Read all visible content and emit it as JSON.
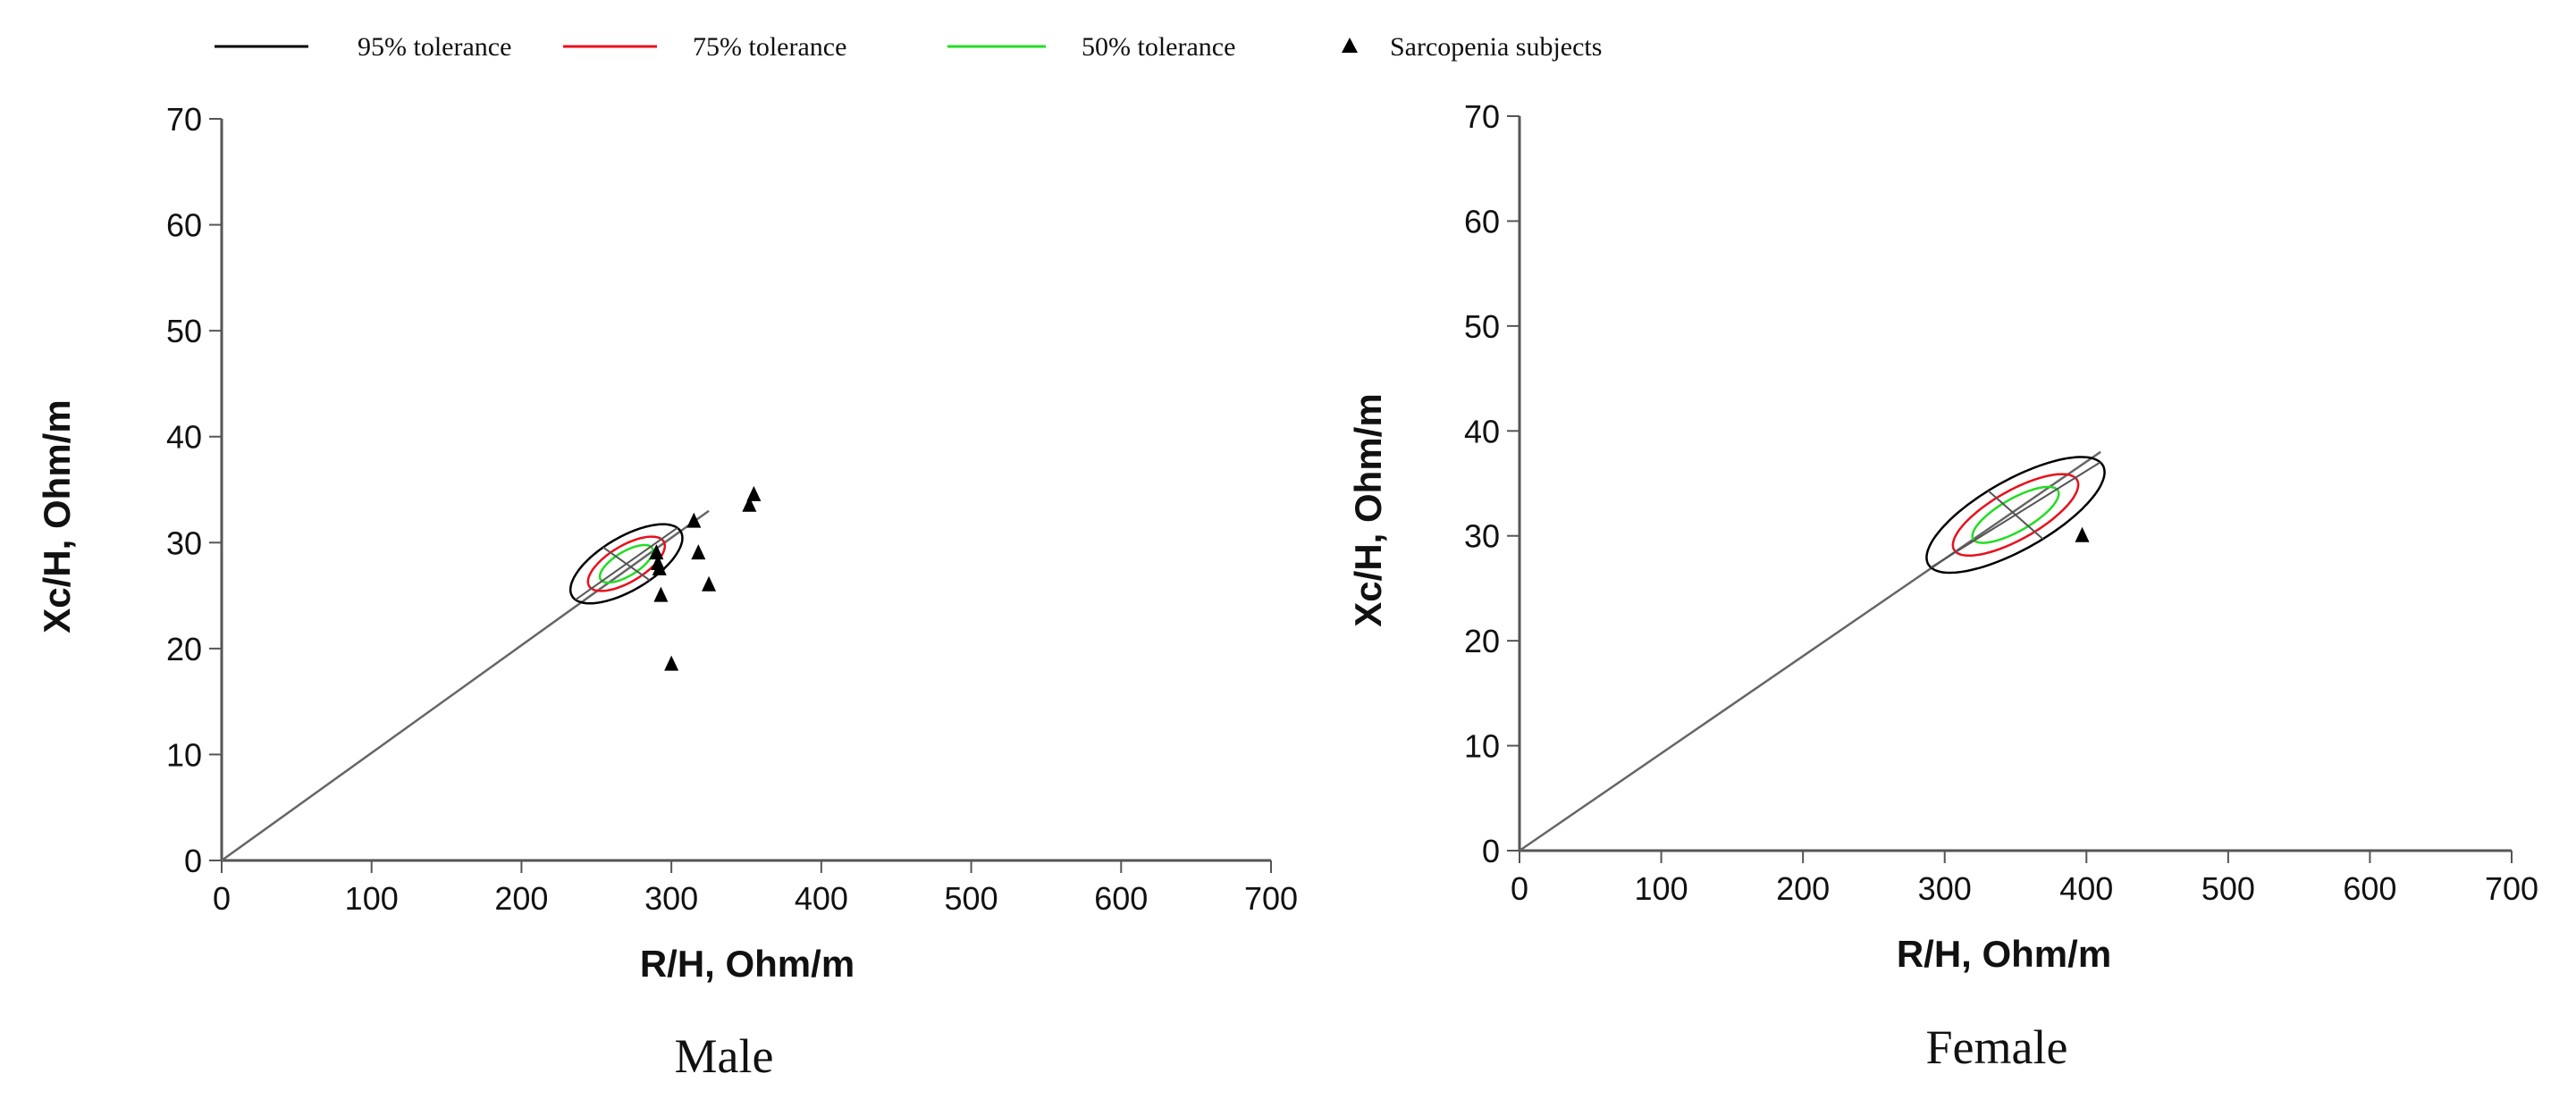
{
  "legend": {
    "items": [
      {
        "label": "95% tolerance",
        "color": "#000000",
        "kind": "line"
      },
      {
        "label": "75% tolerance",
        "color": "#e8101c",
        "kind": "line"
      },
      {
        "label": "50% tolerance",
        "color": "#22dd22",
        "kind": "line"
      },
      {
        "label": "Sarcopenia subjects",
        "color": "#000000",
        "kind": "triangle"
      }
    ]
  },
  "chart_data": [
    {
      "type": "scatter",
      "title": "Male",
      "xlabel": "R/H, Ohm/m",
      "ylabel": "Xc/H, Ohm/m",
      "xlim": [
        0,
        700
      ],
      "ylim": [
        0,
        70
      ],
      "xticks": [
        0,
        100,
        200,
        300,
        400,
        500,
        600,
        700
      ],
      "yticks": [
        0,
        10,
        20,
        30,
        40,
        50,
        60,
        70
      ],
      "tolerance_ellipses": {
        "center": [
          270,
          28
        ],
        "axis_angle_deg": 45,
        "levels": [
          {
            "name": "95% tolerance",
            "half_major": 48,
            "half_minor": 22
          },
          {
            "name": "75% tolerance",
            "half_major": 33,
            "half_minor": 15
          },
          {
            "name": "50% tolerance",
            "half_major": 23,
            "half_minor": 10
          }
        ]
      },
      "origin_line_to": [
        325,
        33
      ],
      "series": [
        {
          "name": "Sarcopenia subjects",
          "points": [
            {
              "x": 290,
              "y": 29
            },
            {
              "x": 291,
              "y": 28
            },
            {
              "x": 292,
              "y": 27.5
            },
            {
              "x": 293,
              "y": 25
            },
            {
              "x": 315,
              "y": 32
            },
            {
              "x": 318,
              "y": 29
            },
            {
              "x": 325,
              "y": 26
            },
            {
              "x": 352,
              "y": 33.5
            },
            {
              "x": 355,
              "y": 34.5
            },
            {
              "x": 300,
              "y": 18.5
            }
          ]
        }
      ]
    },
    {
      "type": "scatter",
      "title": "Female",
      "xlabel": "R/H, Ohm/m",
      "ylabel": "Xc/H, Ohm/m",
      "xlim": [
        0,
        700
      ],
      "ylim": [
        0,
        70
      ],
      "xticks": [
        0,
        100,
        200,
        300,
        400,
        500,
        600,
        700
      ],
      "yticks": [
        0,
        10,
        20,
        30,
        40,
        50,
        60,
        70
      ],
      "tolerance_ellipses": {
        "center": [
          350,
          32
        ],
        "axis_angle_deg": 40,
        "levels": [
          {
            "name": "95% tolerance",
            "half_major": 78,
            "half_minor": 30
          },
          {
            "name": "75% tolerance",
            "half_major": 55,
            "half_minor": 21
          },
          {
            "name": "50% tolerance",
            "half_major": 38,
            "half_minor": 14
          }
        ]
      },
      "origin_line_to": [
        410,
        38
      ],
      "series": [
        {
          "name": "Sarcopenia subjects",
          "points": [
            {
              "x": 397,
              "y": 30
            }
          ]
        }
      ]
    }
  ]
}
